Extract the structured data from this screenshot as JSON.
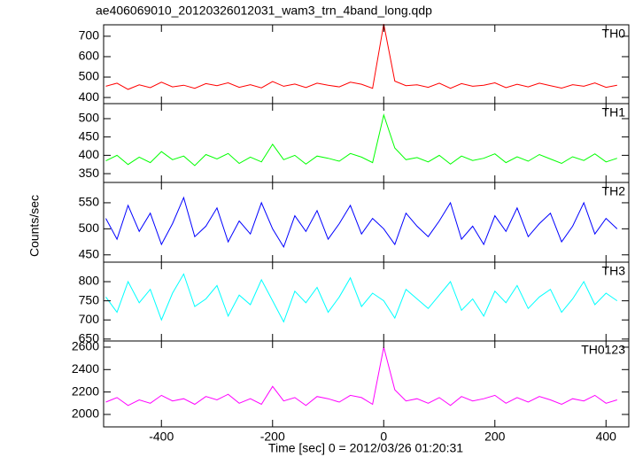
{
  "chart_data": [
    {
      "type": "line",
      "title": "ae406069010_20120326012031_wam3_trn_4band_long.qdp",
      "label": "TH0",
      "color": "#ff0000",
      "values": [
        455,
        470,
        440,
        462,
        448,
        475,
        452,
        460,
        445,
        468,
        458,
        472,
        450,
        463,
        447,
        478,
        455,
        466,
        449,
        470,
        460,
        452,
        475,
        465,
        445,
        760,
        480,
        458,
        462,
        450,
        470,
        445,
        468,
        455,
        460,
        472,
        448,
        465,
        452,
        470,
        458,
        446,
        463,
        455,
        471,
        450,
        460
      ],
      "xlim": [
        -504,
        441
      ],
      "ylim": [
        370,
        756
      ],
      "yticks": [
        400,
        500,
        600,
        700
      ]
    },
    {
      "type": "line",
      "label": "TH1",
      "color": "#00ff00",
      "values": [
        385,
        400,
        375,
        395,
        380,
        410,
        388,
        398,
        372,
        402,
        390,
        405,
        378,
        395,
        382,
        430,
        388,
        400,
        376,
        398,
        392,
        384,
        405,
        395,
        380,
        510,
        420,
        388,
        394,
        382,
        400,
        376,
        398,
        386,
        392,
        404,
        380,
        396,
        384,
        402,
        390,
        378,
        396,
        386,
        404,
        382,
        392
      ],
      "xlim": [
        -504,
        441
      ],
      "ylim": [
        326,
        541
      ],
      "yticks": [
        350,
        400,
        450,
        500
      ]
    },
    {
      "type": "line",
      "label": "TH2",
      "color": "#0000ff",
      "ylabel": "Counts/sec",
      "values": [
        520,
        480,
        545,
        495,
        530,
        470,
        510,
        560,
        485,
        505,
        540,
        475,
        515,
        490,
        550,
        500,
        465,
        525,
        495,
        535,
        480,
        510,
        545,
        490,
        520,
        500,
        470,
        530,
        505,
        485,
        515,
        550,
        480,
        505,
        470,
        525,
        495,
        540,
        485,
        510,
        530,
        475,
        505,
        550,
        490,
        520,
        500
      ],
      "xlim": [
        -504,
        441
      ],
      "ylim": [
        436,
        589
      ],
      "yticks": [
        450,
        500,
        550
      ]
    },
    {
      "type": "line",
      "label": "TH3",
      "color": "#00ffff",
      "values": [
        760,
        720,
        800,
        745,
        780,
        700,
        770,
        820,
        735,
        755,
        790,
        710,
        765,
        740,
        805,
        750,
        695,
        775,
        745,
        785,
        720,
        760,
        810,
        735,
        770,
        750,
        705,
        780,
        755,
        730,
        765,
        800,
        725,
        755,
        710,
        775,
        745,
        790,
        730,
        760,
        780,
        720,
        755,
        800,
        740,
        770,
        750
      ],
      "xlim": [
        -504,
        441
      ],
      "ylim": [
        645,
        851
      ],
      "yticks": [
        650,
        700,
        750,
        800
      ]
    },
    {
      "type": "line",
      "label": "TH0123",
      "color": "#ff00ff",
      "xlabel": "Time [sec] 0 = 2012/03/26 01:20:31",
      "x": [
        -500,
        -480,
        -460,
        -440,
        -420,
        -400,
        -380,
        -360,
        -340,
        -320,
        -300,
        -280,
        -260,
        -240,
        -220,
        -200,
        -180,
        -160,
        -140,
        -120,
        -100,
        -80,
        -60,
        -40,
        -20,
        0,
        20,
        40,
        60,
        80,
        100,
        120,
        140,
        160,
        180,
        200,
        220,
        240,
        260,
        280,
        300,
        320,
        340,
        360,
        380,
        400,
        420
      ],
      "values": [
        2110,
        2150,
        2080,
        2130,
        2100,
        2170,
        2120,
        2140,
        2090,
        2160,
        2130,
        2180,
        2100,
        2140,
        2090,
        2250,
        2120,
        2150,
        2080,
        2160,
        2140,
        2110,
        2170,
        2150,
        2090,
        2600,
        2220,
        2120,
        2140,
        2100,
        2150,
        2080,
        2160,
        2120,
        2140,
        2170,
        2100,
        2150,
        2110,
        2160,
        2130,
        2090,
        2140,
        2120,
        2170,
        2100,
        2130
      ],
      "xlim": [
        -504,
        441
      ],
      "ylim": [
        1889,
        2655
      ],
      "yticks": [
        2000,
        2200,
        2400,
        2600
      ],
      "xticks": [
        -400,
        -200,
        0,
        200,
        400
      ]
    }
  ]
}
